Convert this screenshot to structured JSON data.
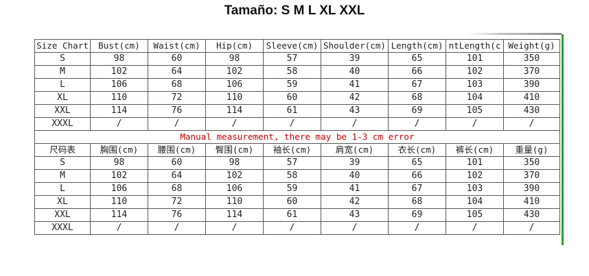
{
  "heading": "Tamaño: S M L XL XXL",
  "table_en": {
    "headers": [
      "Size Chart",
      "Bust(cm)",
      "Waist(cm)",
      "Hip(cm)",
      "Sleeve(cm)",
      "Shoulder(cm)",
      "Length(cm)",
      "ntLength(c",
      "Weight(g)"
    ],
    "rows": [
      [
        "S",
        "98",
        "60",
        "98",
        "57",
        "39",
        "65",
        "101",
        "350"
      ],
      [
        "M",
        "102",
        "64",
        "102",
        "58",
        "40",
        "66",
        "102",
        "370"
      ],
      [
        "L",
        "106",
        "68",
        "106",
        "59",
        "41",
        "67",
        "103",
        "390"
      ],
      [
        "XL",
        "110",
        "72",
        "110",
        "60",
        "42",
        "68",
        "104",
        "410"
      ],
      [
        "XXL",
        "114",
        "76",
        "114",
        "61",
        "43",
        "69",
        "105",
        "430"
      ],
      [
        "XXXL",
        "/",
        "/",
        "/",
        "/",
        "/",
        "/",
        "/",
        "/"
      ]
    ]
  },
  "note": "Manual measurement, there may be 1-3 cm error",
  "table_cn": {
    "headers": [
      "尺码表",
      "胸围(cm)",
      "腰围(cm)",
      "臀围(cm)",
      "袖长(cm)",
      "肩宽(cm)",
      "衣长(cm)",
      "裤长(cm)",
      "重量(g)"
    ],
    "rows": [
      [
        "S",
        "98",
        "60",
        "98",
        "57",
        "39",
        "65",
        "101",
        "350"
      ],
      [
        "M",
        "102",
        "64",
        "102",
        "58",
        "40",
        "66",
        "102",
        "370"
      ],
      [
        "L",
        "106",
        "68",
        "106",
        "59",
        "41",
        "67",
        "103",
        "390"
      ],
      [
        "XL",
        "110",
        "72",
        "110",
        "60",
        "42",
        "68",
        "104",
        "410"
      ],
      [
        "XXL",
        "114",
        "76",
        "114",
        "61",
        "43",
        "69",
        "105",
        "430"
      ],
      [
        "XXXL",
        "/",
        "/",
        "/",
        "/",
        "/",
        "/",
        "/",
        "/"
      ]
    ]
  },
  "colors": {
    "note": "#c00000",
    "border": "#555555",
    "right_bar": "#2aa02a"
  }
}
